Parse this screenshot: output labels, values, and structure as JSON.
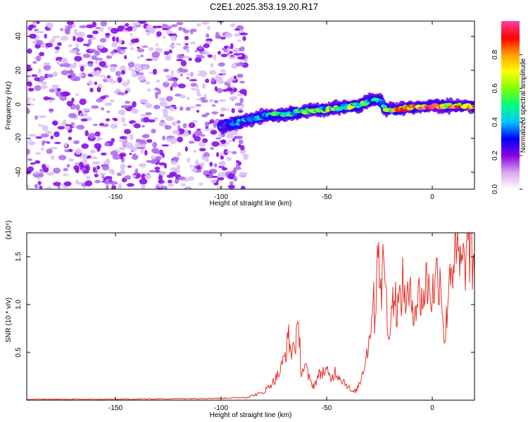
{
  "title": "C2E1.2025.353.19.20.R17",
  "chart_data": [
    {
      "type": "heatmap",
      "title": "C2E1.2025.353.19.20.R17",
      "xlabel": "Height of straight line (km)",
      "ylabel": "Frequency (Hz)",
      "xlim": [
        -192,
        20
      ],
      "ylim": [
        -50,
        49
      ],
      "xticks": [
        -150,
        -100,
        -50,
        0
      ],
      "xtick_labels": [
        "-150",
        "-100",
        "-50",
        "0"
      ],
      "yticks": [
        -40,
        -20,
        0,
        20,
        40
      ],
      "ytick_labels": [
        "-40",
        "-20",
        "0",
        "20",
        "40"
      ],
      "colorbar": {
        "label": "Normalized spectral amplitude",
        "range": [
          0,
          1
        ],
        "ticks": [
          0.0,
          0.2,
          0.4,
          0.6,
          0.8
        ],
        "tick_labels": [
          "0.0",
          "0.2",
          "0.4",
          "0.6",
          "0.8"
        ],
        "colors": [
          "#ffffff",
          "#d8a8f0",
          "#8a00e0",
          "#0000ff",
          "#00c8ff",
          "#00ff80",
          "#80ff00",
          "#ffff00",
          "#ffa000",
          "#ff0000",
          "#ff40a0"
        ]
      },
      "noise_region": {
        "x_range": [
          -192,
          -88
        ],
        "y_range": [
          -50,
          49
        ]
      },
      "ridge": {
        "x": [
          -100,
          -90,
          -80,
          -70,
          -60,
          -50,
          -40,
          -35,
          -30,
          -25,
          -22,
          -20,
          -10,
          0,
          10,
          20
        ],
        "freq": [
          -13,
          -10,
          -7,
          -6,
          -4,
          -3,
          -1,
          -1,
          2,
          3,
          -3,
          -3,
          -2,
          -1,
          -1,
          -1
        ],
        "peak_amplitude": [
          0.3,
          0.35,
          0.45,
          0.5,
          0.55,
          0.55,
          0.6,
          0.55,
          0.5,
          0.45,
          0.55,
          0.65,
          0.85,
          0.9,
          0.85,
          0.9
        ]
      }
    },
    {
      "type": "line",
      "title": "",
      "xlabel": "Height of straight line (km)",
      "ylabel": "SNR (10 * v/v)",
      "multiplier_label": "(x10⁴)",
      "xlim": [
        -192,
        20
      ],
      "ylim": [
        0,
        1.75
      ],
      "xticks": [
        -150,
        -100,
        -50,
        0
      ],
      "xtick_labels": [
        "-150",
        "-100",
        "-50",
        "0"
      ],
      "yticks": [
        0.5,
        1.0,
        1.5
      ],
      "ytick_labels": [
        "0.5",
        "1.0",
        "1.5"
      ],
      "line_color": "#e8322a",
      "series": [
        {
          "name": "SNR",
          "x": [
            -192,
            -150,
            -100,
            -88,
            -80,
            -75,
            -72,
            -70,
            -68,
            -67,
            -65,
            -63,
            -62,
            -60,
            -58,
            -56,
            -54,
            -52,
            -50,
            -48,
            -46,
            -44,
            -42,
            -40,
            -38,
            -36,
            -34,
            -32,
            -30,
            -28,
            -27,
            -26,
            -25,
            -24,
            -23,
            -22,
            -21,
            -20,
            -18,
            -16,
            -14,
            -12,
            -10,
            -8,
            -6,
            -4,
            -3,
            -2,
            0,
            2,
            4,
            6,
            8,
            10,
            12,
            14,
            16,
            17,
            18,
            20
          ],
          "y": [
            0.01,
            0.01,
            0.02,
            0.03,
            0.08,
            0.2,
            0.3,
            0.45,
            0.65,
            0.5,
            0.6,
            0.7,
            0.3,
            0.35,
            0.2,
            0.15,
            0.25,
            0.3,
            0.3,
            0.22,
            0.3,
            0.25,
            0.2,
            0.15,
            0.08,
            0.1,
            0.2,
            0.4,
            0.6,
            1.1,
            0.8,
            1.75,
            1.5,
            0.9,
            1.75,
            1.2,
            0.6,
            0.9,
            1.1,
            0.95,
            1.2,
            1.05,
            1.05,
            1.0,
            1.1,
            1.05,
            1.25,
            1.2,
            1.1,
            1.3,
            1.3,
            0.55,
            1.35,
            1.45,
            1.5,
            1.35,
            1.5,
            1.75,
            1.5,
            1.3
          ]
        }
      ]
    }
  ]
}
